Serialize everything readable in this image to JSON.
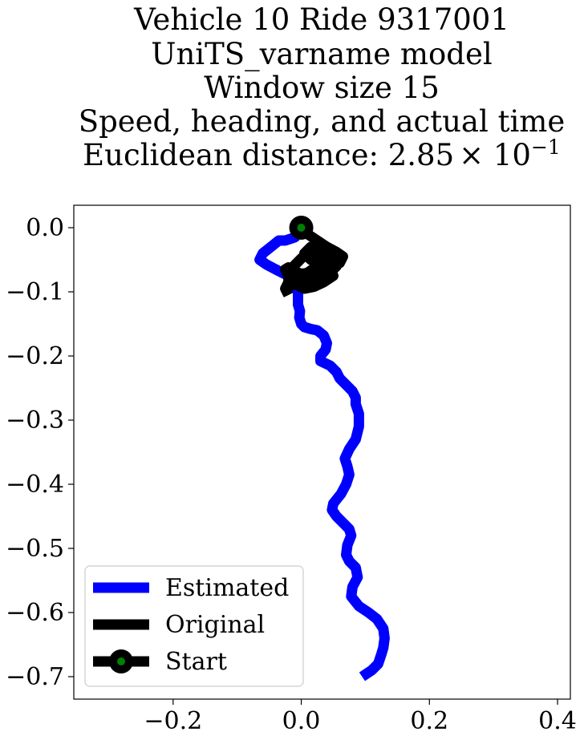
{
  "chart_data": {
    "type": "line",
    "title_lines": [
      "Vehicle 10 Ride 9317001",
      "UniTS_varname model",
      "Window size 15",
      "Speed, heading, and actual time"
    ],
    "title_distance_prefix": "Euclidean distance: 2.85",
    "title_distance_multiplier": "× 10",
    "title_distance_exponent": "−1",
    "xlabel": "",
    "ylabel": "",
    "xlim": [
      -0.355,
      0.42
    ],
    "ylim": [
      -0.735,
      0.035
    ],
    "xticks": [
      {
        "value": -0.2,
        "label": "−0.2"
      },
      {
        "value": 0.0,
        "label": "0.0"
      },
      {
        "value": 0.2,
        "label": "0.2"
      },
      {
        "value": 0.4,
        "label": "0.4"
      }
    ],
    "yticks": [
      {
        "value": 0.0,
        "label": "0.0"
      },
      {
        "value": -0.1,
        "label": "−0.1"
      },
      {
        "value": -0.2,
        "label": "−0.2"
      },
      {
        "value": -0.3,
        "label": "−0.3"
      },
      {
        "value": -0.4,
        "label": "−0.4"
      },
      {
        "value": -0.5,
        "label": "−0.5"
      },
      {
        "value": -0.6,
        "label": "−0.6"
      },
      {
        "value": -0.7,
        "label": "−0.7"
      }
    ],
    "grid": false,
    "legend_position": "lower-left",
    "series": [
      {
        "name": "Estimated",
        "color": "#0000ff",
        "x": [
          0.0,
          -0.01,
          -0.025,
          -0.035,
          -0.045,
          -0.06,
          -0.065,
          -0.055,
          -0.04,
          -0.03,
          -0.02,
          -0.015,
          -0.01,
          -0.005,
          -0.005,
          -0.005,
          -0.002,
          -0.003,
          0.0,
          0.005,
          0.015,
          0.025,
          0.035,
          0.04,
          0.038,
          0.03,
          0.03,
          0.045,
          0.055,
          0.06,
          0.07,
          0.08,
          0.085,
          0.085,
          0.09,
          0.09,
          0.085,
          0.075,
          0.068,
          0.072,
          0.075,
          0.07,
          0.062,
          0.05,
          0.048,
          0.055,
          0.065,
          0.075,
          0.078,
          0.072,
          0.07,
          0.075,
          0.085,
          0.088,
          0.08,
          0.078,
          0.09,
          0.105,
          0.118,
          0.128,
          0.13,
          0.128,
          0.125,
          0.12,
          0.11,
          0.095
        ],
        "y": [
          0.0,
          -0.015,
          -0.02,
          -0.02,
          -0.028,
          -0.04,
          -0.05,
          -0.057,
          -0.065,
          -0.07,
          -0.075,
          -0.08,
          -0.09,
          -0.1,
          -0.11,
          -0.12,
          -0.13,
          -0.14,
          -0.15,
          -0.155,
          -0.158,
          -0.16,
          -0.168,
          -0.18,
          -0.19,
          -0.2,
          -0.208,
          -0.215,
          -0.225,
          -0.235,
          -0.245,
          -0.255,
          -0.265,
          -0.275,
          -0.29,
          -0.31,
          -0.33,
          -0.345,
          -0.36,
          -0.372,
          -0.385,
          -0.4,
          -0.415,
          -0.43,
          -0.44,
          -0.45,
          -0.46,
          -0.47,
          -0.48,
          -0.495,
          -0.51,
          -0.52,
          -0.53,
          -0.545,
          -0.56,
          -0.575,
          -0.59,
          -0.6,
          -0.61,
          -0.625,
          -0.64,
          -0.655,
          -0.665,
          -0.68,
          -0.69,
          -0.7
        ]
      },
      {
        "name": "Original",
        "color": "#000000",
        "x": [
          0.0,
          0.01,
          0.025,
          0.04,
          0.055,
          0.065,
          0.06,
          0.045,
          0.03,
          0.015,
          0.0,
          -0.01,
          -0.02,
          -0.025,
          -0.02,
          -0.015,
          0.0,
          0.015,
          0.03,
          0.045,
          0.055,
          0.05,
          0.035,
          0.02,
          0.01,
          0.0,
          -0.01,
          -0.02,
          -0.02,
          -0.015,
          -0.005,
          0.01,
          0.025,
          0.04,
          0.05,
          0.055,
          0.045,
          0.03,
          0.015,
          0.0,
          0.01,
          0.025,
          0.04,
          0.05,
          0.045,
          0.03,
          0.015,
          0.005,
          0.015,
          0.03,
          0.045,
          0.05,
          0.035,
          0.02,
          0.005,
          -0.005,
          -0.015,
          -0.02,
          -0.025,
          -0.02
        ],
        "y": [
          0.0,
          -0.01,
          -0.02,
          -0.03,
          -0.038,
          -0.045,
          -0.055,
          -0.06,
          -0.065,
          -0.07,
          -0.072,
          -0.068,
          -0.062,
          -0.065,
          -0.075,
          -0.085,
          -0.09,
          -0.088,
          -0.08,
          -0.07,
          -0.06,
          -0.05,
          -0.042,
          -0.038,
          -0.04,
          -0.048,
          -0.058,
          -0.07,
          -0.082,
          -0.09,
          -0.085,
          -0.075,
          -0.065,
          -0.055,
          -0.048,
          -0.055,
          -0.065,
          -0.075,
          -0.085,
          -0.08,
          -0.07,
          -0.06,
          -0.05,
          -0.045,
          -0.035,
          -0.028,
          -0.03,
          -0.04,
          -0.05,
          -0.058,
          -0.065,
          -0.075,
          -0.085,
          -0.092,
          -0.095,
          -0.09,
          -0.082,
          -0.085,
          -0.095,
          -0.105
        ]
      },
      {
        "name": "Start",
        "color": "#000000",
        "marker_color": "#008000",
        "x": [
          0.0
        ],
        "y": [
          0.0
        ]
      }
    ]
  }
}
